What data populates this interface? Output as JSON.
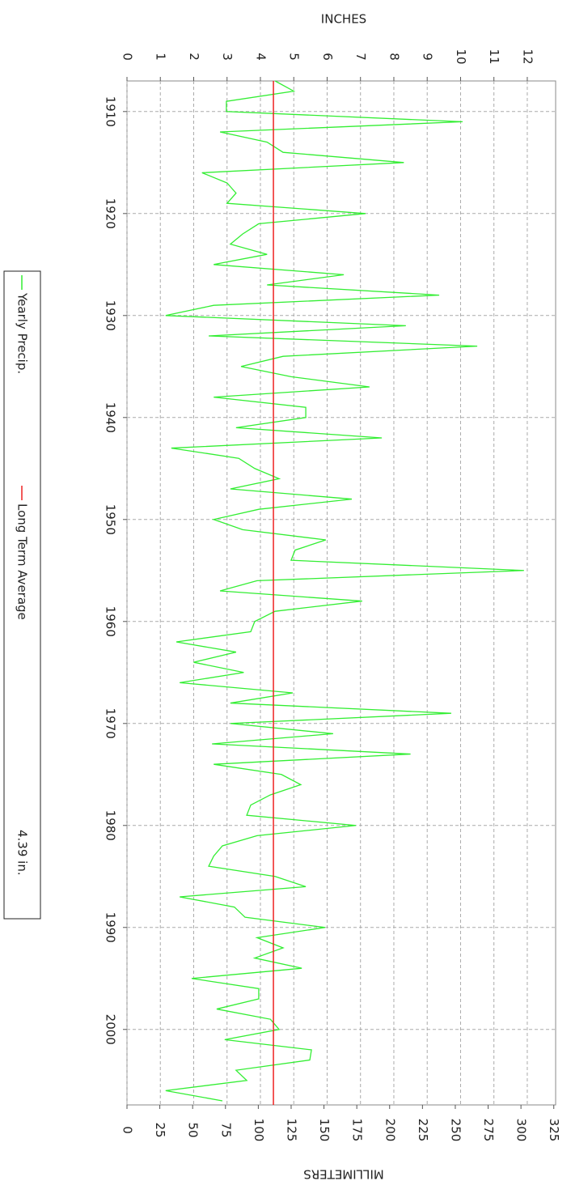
{
  "chart_data": {
    "type": "line",
    "ylabel": "INCHES",
    "y2label": "MILLIMETERS",
    "xlim": [
      1907,
      2007.4
    ],
    "xticks": [
      1910,
      1920,
      1930,
      1940,
      1950,
      1960,
      1970,
      1980,
      1990,
      2000
    ],
    "ylim": [
      0,
      12.85
    ],
    "yticks": [
      0,
      1,
      2,
      3,
      4,
      5,
      6,
      7,
      8,
      9,
      10,
      11,
      12
    ],
    "y2lim": [
      0,
      326.4
    ],
    "y2ticks": [
      0,
      25,
      50,
      75,
      100,
      125,
      150,
      175,
      200,
      225,
      250,
      275,
      300,
      325
    ],
    "grid": true,
    "x": [
      1907,
      1908,
      1909,
      1910,
      1911,
      1912,
      1913,
      1914,
      1915,
      1916,
      1917,
      1918,
      1919,
      1920,
      1921,
      1922,
      1923,
      1924,
      1925,
      1926,
      1927,
      1928,
      1929,
      1930,
      1931,
      1932,
      1933,
      1934,
      1935,
      1936,
      1937,
      1938,
      1939,
      1940,
      1941,
      1942,
      1943,
      1944,
      1945,
      1946,
      1947,
      1948,
      1949,
      1950,
      1951,
      1952,
      1953,
      1954,
      1955,
      1956,
      1957,
      1958,
      1959,
      1960,
      1961,
      1962,
      1963,
      1964,
      1965,
      1966,
      1967,
      1968,
      1969,
      1970,
      1971,
      1972,
      1973,
      1974,
      1975,
      1976,
      1977,
      1978,
      1979,
      1980,
      1981,
      1982,
      1983,
      1984,
      1985,
      1986,
      1987,
      1988,
      1989,
      1990,
      1991,
      1992,
      1993,
      1994,
      1995,
      1996,
      1997,
      1998,
      1999,
      2000,
      2001,
      2002,
      2003,
      2004,
      2005,
      2006,
      2007
    ],
    "series": [
      {
        "name": "Yearly Precip.",
        "color": "#33ee33",
        "values": [
          4.44,
          5.0,
          2.98,
          2.98,
          10.06,
          2.79,
          4.2,
          4.68,
          8.3,
          2.25,
          3.0,
          3.27,
          3.0,
          7.15,
          3.95,
          3.47,
          3.1,
          4.2,
          2.6,
          6.5,
          4.2,
          9.36,
          2.6,
          1.16,
          8.36,
          2.45,
          10.5,
          4.68,
          3.42,
          4.92,
          7.27,
          2.6,
          5.36,
          5.36,
          3.27,
          7.64,
          1.33,
          3.35,
          3.83,
          4.56,
          3.1,
          6.74,
          3.95,
          2.6,
          3.47,
          5.96,
          5.04,
          4.92,
          11.9,
          3.9,
          2.79,
          7.05,
          4.44,
          3.83,
          3.71,
          1.48,
          3.27,
          2.0,
          3.5,
          1.58,
          4.97,
          3.1,
          9.72,
          3.1,
          6.18,
          2.55,
          8.5,
          2.6,
          4.63,
          5.21,
          4.3,
          3.71,
          3.59,
          6.86,
          3.9,
          2.86,
          2.6,
          2.45,
          4.44,
          5.36,
          1.58,
          3.22,
          3.54,
          5.94,
          3.9,
          4.68,
          3.83,
          5.24,
          1.94,
          3.95,
          3.95,
          2.69,
          4.3,
          4.56,
          2.93,
          5.53,
          5.48,
          3.27,
          3.59,
          1.16,
          2.86
        ]
      }
    ],
    "average": {
      "name": "Long Term Average",
      "color": "#ee2222",
      "value": 4.39,
      "label": "4.39 in."
    }
  }
}
